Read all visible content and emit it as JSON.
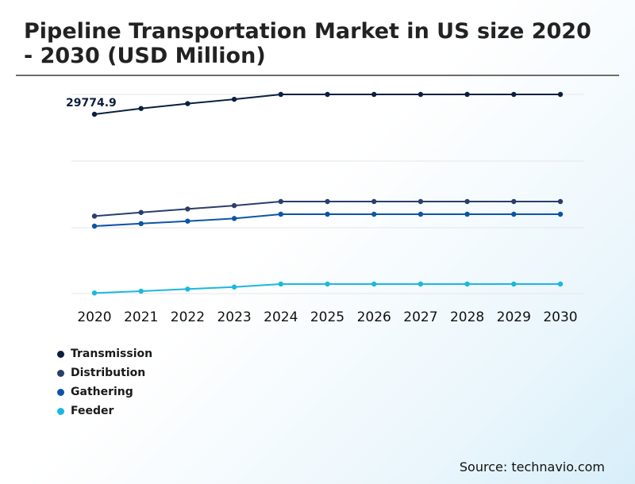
{
  "chart_data": {
    "type": "line",
    "title": "Pipeline Transportation Market in US size 2020 - 2030 (USD Million)",
    "x": [
      "2020",
      "2021",
      "2022",
      "2023",
      "2024",
      "2025",
      "2026",
      "2027",
      "2028",
      "2029",
      "2030"
    ],
    "series": [
      {
        "name": "Transmission",
        "color": "#0b1f3f",
        "values": [
          29774.9,
          30190,
          30540,
          30850,
          31200,
          31200,
          31200,
          31200,
          31200,
          31200,
          31200
        ]
      },
      {
        "name": "Distribution",
        "color": "#2b3e6b",
        "values": [
          13050,
          13320,
          13550,
          13780,
          14050,
          14050,
          14050,
          14050,
          14050,
          14050,
          14050
        ]
      },
      {
        "name": "Gathering",
        "color": "#0d55a6",
        "values": [
          12250,
          12450,
          12650,
          12860,
          13200,
          13200,
          13200,
          13200,
          13200,
          13200,
          13200
        ]
      },
      {
        "name": "Feeder",
        "color": "#1ab8df",
        "values": [
          7050,
          7200,
          7380,
          7550,
          7800,
          7800,
          7800,
          7800,
          7800,
          7800,
          7800
        ]
      }
    ],
    "data_labels": [
      {
        "series": "Transmission",
        "index": 0,
        "text": "29774.9"
      }
    ],
    "ylim": [
      7000,
      31200
    ],
    "grid": true,
    "legend": "bottom-left",
    "xlabel": "",
    "ylabel": ""
  },
  "source": "Source: technavio.com"
}
